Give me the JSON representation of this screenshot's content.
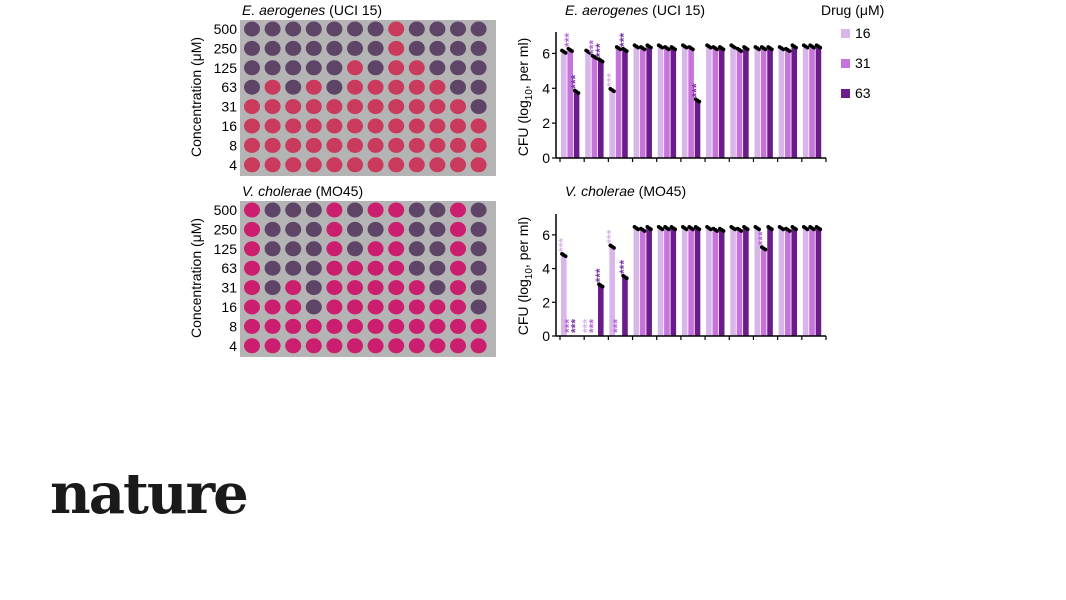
{
  "brand": {
    "name": "nature"
  },
  "colors": {
    "plate_bg": "#b4b4b4",
    "well_pink": "#c93a5c",
    "well_magenta": "#cc1e6e",
    "well_purple": "#5e4567",
    "drug_16": "#d9b6ea",
    "drug_31": "#c673dc",
    "drug_63": "#6b1c8a",
    "star_16": "#d9b6ea",
    "star_31": "#b96ad6",
    "star_63": "#7a36a3"
  },
  "legend": {
    "title": "Drug (μM)",
    "items": [
      {
        "label": "16",
        "color": "#d9b6ea"
      },
      {
        "label": "31",
        "color": "#c673dc"
      },
      {
        "label": "63",
        "color": "#6b1c8a"
      }
    ]
  },
  "chart_data": [
    {
      "type": "heatmap",
      "panel": "plate-top",
      "title_italic": "E. aerogenes",
      "title_rest": " (UCI 15)",
      "ylabel": "Concentration (μM)",
      "rows": [
        "500",
        "250",
        "125",
        "63",
        "31",
        "16",
        "8",
        "4"
      ],
      "wells": [
        "PPPPPPPKPPPP",
        "PPPPPPPKPPPP",
        "PPPPPKPKKPPP",
        "PKPKPKKKKKPP",
        "KKKKKKKKKKKP",
        "KKKKKKKKKKKK",
        "KKKKKKKKKKKK",
        "KKKKKKKKKKKK"
      ]
    },
    {
      "type": "bar",
      "panel": "bars-top",
      "title_italic": "E. aerogenes",
      "title_rest": " (UCI 15)",
      "ylabel_pre": "CFU (log",
      "ylabel_sub": "10",
      "ylabel_post": ", per ml)",
      "ylim": [
        0,
        7
      ],
      "yticks": [
        "0",
        "2",
        "4",
        "6"
      ],
      "series": [
        {
          "name": "16",
          "values": [
            6.1,
            6.1,
            3.9,
            6.4,
            6.4,
            6.4,
            6.4,
            6.4,
            6.3,
            6.3,
            6.4
          ]
        },
        {
          "name": "31",
          "values": [
            6.2,
            5.8,
            6.3,
            6.3,
            6.3,
            6.3,
            6.3,
            6.2,
            6.3,
            6.2,
            6.4
          ]
        },
        {
          "name": "63",
          "values": [
            3.8,
            5.6,
            6.2,
            6.4,
            6.3,
            3.3,
            6.3,
            6.3,
            6.3,
            6.4,
            6.4
          ]
        }
      ],
      "stars": [
        {
          "group": 0,
          "bar": 1,
          "text": "***"
        },
        {
          "group": 0,
          "bar": 2,
          "text": "***"
        },
        {
          "group": 1,
          "bar": 1,
          "text": "***"
        },
        {
          "group": 1,
          "bar": 2,
          "text": "***"
        },
        {
          "group": 2,
          "bar": 0,
          "text": "***"
        },
        {
          "group": 2,
          "bar": 2,
          "text": "***"
        },
        {
          "group": 5,
          "bar": 2,
          "text": "***"
        }
      ]
    },
    {
      "type": "heatmap",
      "panel": "plate-bottom",
      "title_italic": "V. cholerae",
      "title_rest": " (MO45)",
      "ylabel": "Concentration (μM)",
      "rows": [
        "500",
        "250",
        "125",
        "63",
        "31",
        "16",
        "8",
        "4"
      ],
      "wells": [
        "MPPPMPMMPPMP",
        "MPPPMPPMPPMP",
        "MPPPMPMMPPMP",
        "MPPPMMMMPPMP",
        "MPMPMMMMMPMP",
        "MMMPMMMMMMMP",
        "MMMMMMMMMMMM",
        "MMMMMMMMMMMM"
      ]
    },
    {
      "type": "bar",
      "panel": "bars-bottom",
      "title_italic": "V. cholerae",
      "title_rest": " (MO45)",
      "ylabel_pre": "CFU (log",
      "ylabel_sub": "10",
      "ylabel_post": ", per ml)",
      "ylim": [
        0,
        7
      ],
      "yticks": [
        "0",
        "2",
        "4",
        "6"
      ],
      "series": [
        {
          "name": "16",
          "values": [
            4.8,
            0,
            5.3,
            6.4,
            6.4,
            6.4,
            6.4,
            6.4,
            6.4,
            6.4,
            6.4
          ]
        },
        {
          "name": "31",
          "values": [
            0,
            0,
            0,
            6.3,
            6.4,
            6.4,
            6.3,
            6.3,
            5.2,
            6.3,
            6.4
          ]
        },
        {
          "name": "63",
          "values": [
            0,
            3.0,
            3.5,
            6.4,
            6.4,
            6.4,
            6.3,
            6.4,
            6.4,
            6.4,
            6.4
          ]
        }
      ],
      "stars": [
        {
          "group": 0,
          "bar": 0,
          "text": "***"
        },
        {
          "group": 0,
          "bar": 1,
          "text": "***"
        },
        {
          "group": 0,
          "bar": 2,
          "text": "***"
        },
        {
          "group": 1,
          "bar": 0,
          "text": "***"
        },
        {
          "group": 1,
          "bar": 1,
          "text": "***"
        },
        {
          "group": 1,
          "bar": 2,
          "text": "***"
        },
        {
          "group": 2,
          "bar": 0,
          "text": "***"
        },
        {
          "group": 2,
          "bar": 1,
          "text": "***"
        },
        {
          "group": 2,
          "bar": 2,
          "text": "***"
        },
        {
          "group": 8,
          "bar": 1,
          "text": "***"
        }
      ]
    }
  ]
}
